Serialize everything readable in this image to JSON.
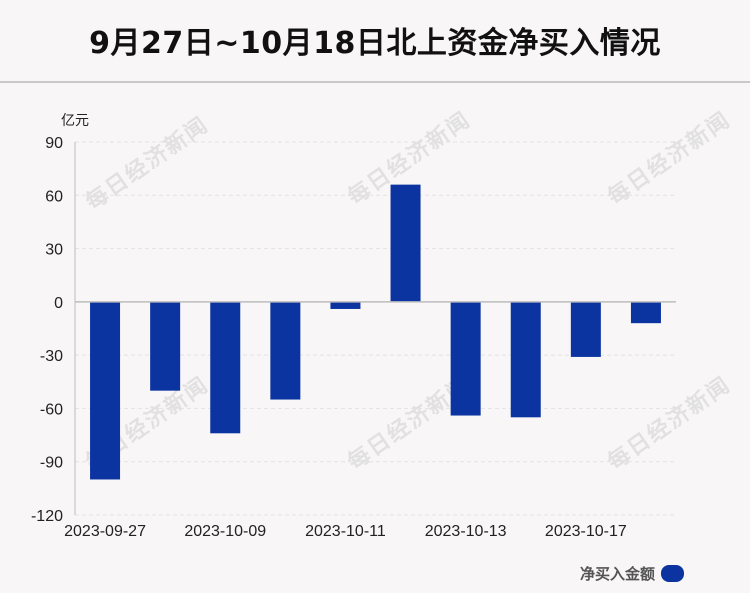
{
  "title": "9月27日~10月18日北上资金净买入情况",
  "watermark": "每日经济新闻",
  "unit_label": "亿元",
  "legend_label": "净买入金额",
  "colors": {
    "bar": "#0c34a0",
    "axis": "#bdbdbd",
    "grid": "#e4e1e2"
  },
  "chart_data": {
    "type": "bar",
    "title": "9月27日~10月18日北上资金净买入情况",
    "ylabel": "亿元",
    "xlabel": "",
    "ylim": [
      -120,
      90
    ],
    "yticks": [
      90,
      60,
      30,
      0,
      -30,
      -60,
      -90,
      -120
    ],
    "grid": true,
    "legend_position": "bottom-right",
    "x_tick_labels": [
      "2023-09-27",
      "2023-10-09",
      "2023-10-11",
      "2023-10-13",
      "2023-10-17"
    ],
    "series": [
      {
        "name": "净买入金额",
        "values": [
          -100,
          -50,
          -74,
          -55,
          -4,
          66,
          -64,
          -65,
          -31,
          -12
        ]
      }
    ]
  }
}
